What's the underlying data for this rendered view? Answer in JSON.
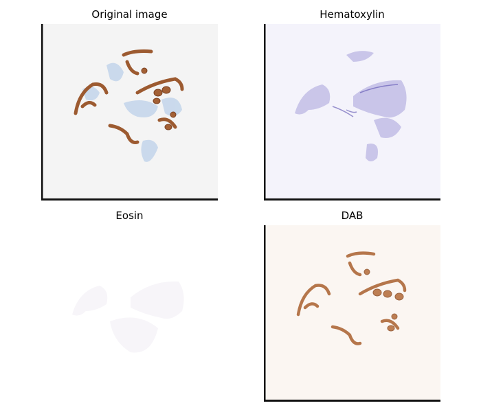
{
  "figure": {
    "panels": [
      {
        "id": "original",
        "title": "Original image",
        "background": "#f4f4f4",
        "tissue_brown": "#9c5a30",
        "tissue_blue": "#a8c4e6",
        "frame_edges": "left-bottom"
      },
      {
        "id": "hematoxylin",
        "title": "Hematoxylin",
        "background": "#f4f3fb",
        "tissue_color": "#7b72c8",
        "frame_edges": "left-bottom"
      },
      {
        "id": "eosin",
        "title": "Eosin",
        "background": "#ffffff",
        "tissue_color": "#f7f5f9",
        "frame_edges": "none"
      },
      {
        "id": "dab",
        "title": "DAB",
        "background": "#fbf6f2",
        "tissue_color": "#a9602f",
        "frame_edges": "left-bottom"
      }
    ]
  }
}
